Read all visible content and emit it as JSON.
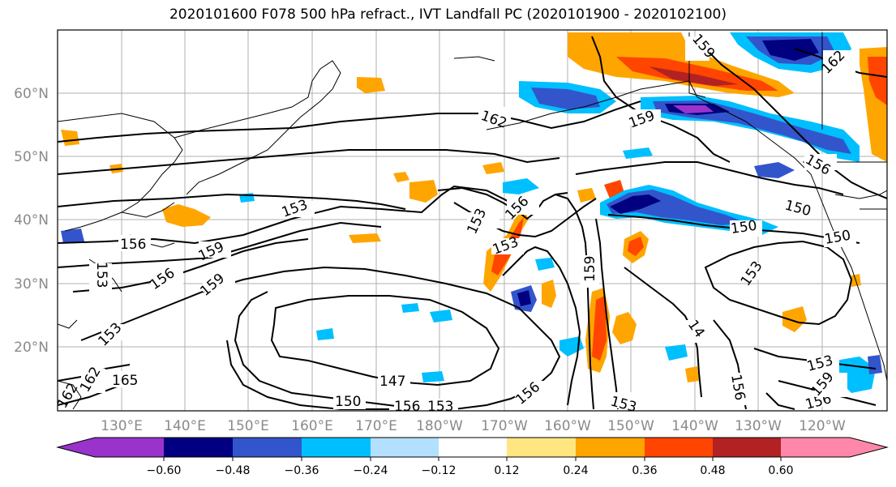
{
  "title": "2020101600 F078 500 hPa refract., IVT Landfall PC (2020101900 - 2020102100)",
  "lat_labels": [
    "60°N",
    "50°N",
    "40°N",
    "30°N",
    "20°N"
  ],
  "lon_labels": [
    "130°E",
    "140°E",
    "150°E",
    "160°E",
    "170°E",
    "180°W",
    "170°W",
    "160°W",
    "150°W",
    "140°W",
    "130°W",
    "120°W"
  ],
  "colorbar": {
    "ticks": [
      "−0.60",
      "−0.48",
      "−0.36",
      "−0.24",
      "−0.12",
      "0.12",
      "0.24",
      "0.36",
      "0.48",
      "0.60"
    ],
    "colors": [
      "#9933cc",
      "#000080",
      "#3355cc",
      "#00bfff",
      "#b3e0ff",
      "#ffffff",
      "#ffe680",
      "#ffa500",
      "#ff4500",
      "#b22222",
      "#ff88aa"
    ]
  },
  "contour_labels": [
    "147",
    "150",
    "150",
    "150",
    "150",
    "153",
    "153",
    "153",
    "153",
    "153",
    "153",
    "153",
    "153",
    "153",
    "156",
    "156",
    "156",
    "156",
    "156",
    "156",
    "156",
    "156",
    "159",
    "159",
    "159",
    "159",
    "159",
    "159",
    "162",
    "162",
    "162",
    "162",
    "165",
    "14"
  ]
}
